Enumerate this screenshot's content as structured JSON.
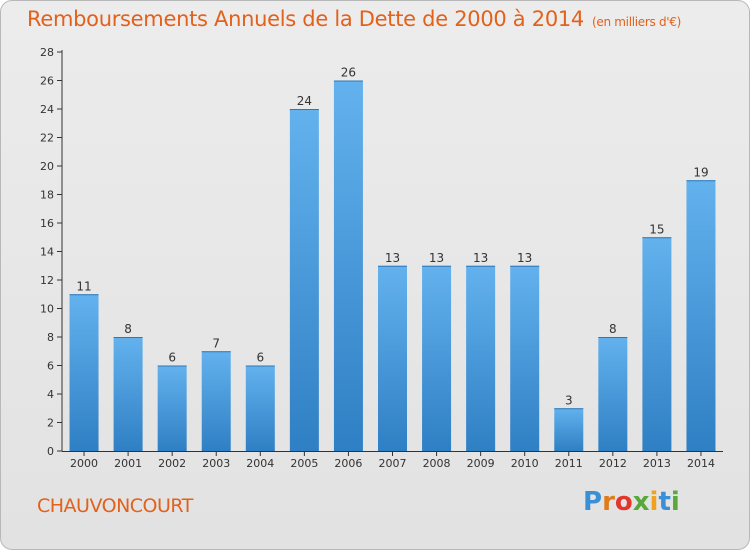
{
  "header": {
    "title": "Remboursements Annuels de la Dette de 2000 à 2014",
    "unit_note": "(en milliers d'€)"
  },
  "footer": {
    "commune": "CHAUVONCOURT",
    "logo_text": "Proxiti",
    "logo_colors": [
      "#3a8fd6",
      "#e07b1c",
      "#e2362c",
      "#57a93a",
      "#f0a21c",
      "#3a8fd6",
      "#57a93a"
    ]
  },
  "colors": {
    "bar_top": "#63b2ee",
    "bar_bottom": "#2f7fc4",
    "bar_side": "#2d78b8",
    "axis": "#333333",
    "text": "#333333",
    "title": "#e2611b"
  },
  "chart_data": {
    "type": "bar",
    "title": "Remboursements Annuels de la Dette de 2000 à 2014",
    "xlabel": "",
    "ylabel": "",
    "categories": [
      "2000",
      "2001",
      "2002",
      "2003",
      "2004",
      "2005",
      "2006",
      "2007",
      "2008",
      "2009",
      "2010",
      "2011",
      "2012",
      "2013",
      "2014"
    ],
    "values": [
      11,
      8,
      6,
      7,
      6,
      24,
      26,
      13,
      13,
      13,
      13,
      3,
      8,
      15,
      19
    ],
    "ylim": [
      0,
      28
    ],
    "yticks": [
      0,
      2,
      4,
      6,
      8,
      10,
      12,
      14,
      16,
      18,
      20,
      22,
      24,
      26,
      28
    ],
    "grid": false,
    "data_labels": true
  }
}
